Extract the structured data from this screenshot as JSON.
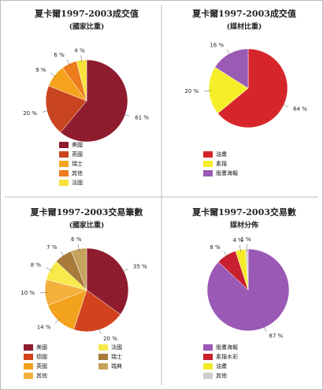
{
  "chart_data": [
    {
      "type": "pie",
      "title": "夏卡爾1997-2003成交值",
      "subtitle": "(國家比重)",
      "categories": [
        "美國",
        "英國",
        "瑞士",
        "其他",
        "法國"
      ],
      "values": [
        61,
        20,
        9,
        6,
        4
      ],
      "value_labels": [
        "61 %",
        "20 %",
        "9 %",
        "6 %",
        "4 %"
      ],
      "colors": [
        "#8e1b2e",
        "#c9451f",
        "#f5a31d",
        "#ee7b1c",
        "#f7e23c"
      ]
    },
    {
      "type": "pie",
      "title": "夏卡爾1997-2003成交值",
      "subtitle": "(媒材比重)",
      "categories": [
        "油畫",
        "素描",
        "版畫海報"
      ],
      "values": [
        64,
        20,
        16
      ],
      "value_labels": [
        "64 %",
        "20 %",
        "16 %"
      ],
      "colors": [
        "#d7262b",
        "#f5ef2a",
        "#9a5bb5"
      ]
    },
    {
      "type": "pie",
      "title": "夏卡爾1997-2003交易筆數",
      "subtitle": "(國家比重)",
      "categories": [
        "美國",
        "德國",
        "英國",
        "其他",
        "法國",
        "瑞士",
        "瑞典"
      ],
      "values": [
        35,
        20,
        14,
        10,
        8,
        7,
        6
      ],
      "value_labels": [
        "35 %",
        "20 %",
        "14 %",
        "10 %",
        "8 %",
        "7 %",
        "6 %"
      ],
      "colors": [
        "#8e1b2e",
        "#d2421d",
        "#f3a21e",
        "#f4b03c",
        "#f7ea4a",
        "#a87a3c",
        "#c6a35b"
      ]
    },
    {
      "type": "pie",
      "title": "夏卡爾1997-2003交易數",
      "subtitle": "媒材分佈",
      "categories": [
        "版畫海報",
        "素描水彩",
        "油畫",
        "其他"
      ],
      "values": [
        87,
        8,
        4,
        1
      ],
      "value_labels": [
        "87 %",
        "8 %",
        "4 %",
        "1 %"
      ],
      "colors": [
        "#9b59b6",
        "#c8202e",
        "#f5ea2a",
        "#cfcfcf"
      ]
    }
  ]
}
